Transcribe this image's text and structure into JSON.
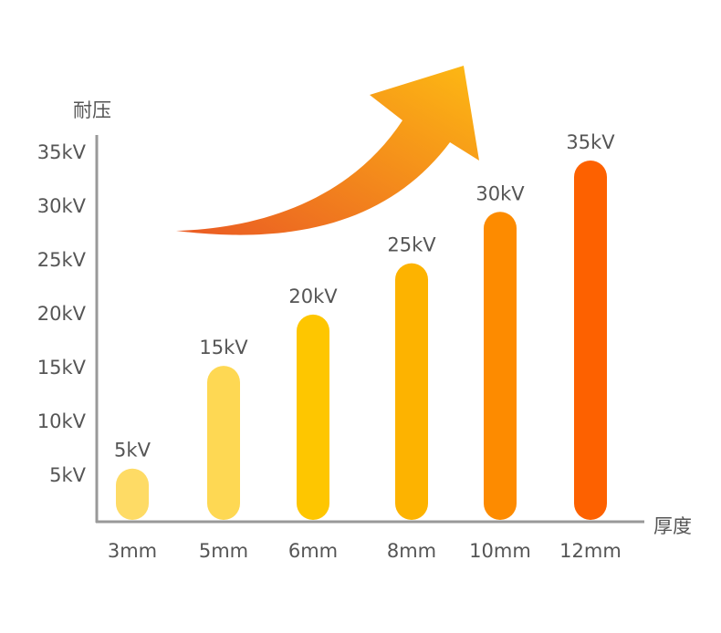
{
  "chart_data": {
    "type": "bar",
    "title": "",
    "ylabel": "耐压",
    "xlabel": "厚度",
    "categories": [
      "3mm",
      "5mm",
      "6mm",
      "8mm",
      "10mm",
      "12mm"
    ],
    "values": [
      5,
      15,
      20,
      25,
      30,
      35
    ],
    "data_labels": [
      "5kV",
      "15kV",
      "20kV",
      "25kV",
      "30kV",
      "35kV"
    ],
    "yticks": [
      "5kV",
      "10kV",
      "15kV",
      "20kV",
      "25kV",
      "30kV",
      "35kV"
    ],
    "ylim": [
      0,
      35
    ],
    "grid": false,
    "bar_colors": [
      "#fedb65",
      "#fed853",
      "#fec600",
      "#fdb300",
      "#fd8b00",
      "#fd6100"
    ],
    "arrow_gradient": [
      "#ea5a24",
      "#fdb913"
    ],
    "axis_color": "#999999",
    "text_color": "#555555"
  }
}
